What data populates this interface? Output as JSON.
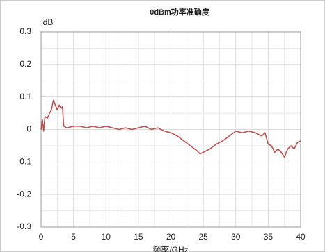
{
  "chart_data": {
    "type": "line",
    "title": "0dBm功率准确度",
    "y_unit": "dB",
    "x_label": "频率/GHz",
    "xlim": [
      0,
      40
    ],
    "xticks": [
      0,
      5,
      10,
      15,
      20,
      25,
      30,
      35,
      40
    ],
    "ylim": [
      -0.3,
      0.3
    ],
    "yticks": [
      0.3,
      0.2,
      0.1,
      0,
      -0.1,
      -0.2,
      -0.3
    ],
    "grid": true,
    "minor_grid": true,
    "series": [
      {
        "color": "#c0504d",
        "x": [
          0,
          0.2,
          0.4,
          0.6,
          1.0,
          1.3,
          1.6,
          1.9,
          2.2,
          2.5,
          2.8,
          3.1,
          3.3,
          3.5,
          4,
          5,
          6,
          7,
          8,
          9,
          10,
          11,
          12,
          13,
          14,
          15,
          16,
          17,
          18,
          19,
          20,
          21,
          22,
          23,
          24,
          24.5,
          25,
          26,
          27,
          28,
          29,
          30,
          31,
          32,
          33,
          34,
          34.5,
          35,
          35.5,
          36,
          36.5,
          37,
          37.5,
          38,
          38.5,
          39,
          39.5,
          40
        ],
        "values": [
          0.0,
          0.03,
          -0.005,
          0.04,
          0.035,
          0.05,
          0.06,
          0.09,
          0.075,
          0.06,
          0.075,
          0.065,
          0.07,
          0.01,
          0.005,
          0.01,
          0.01,
          0.005,
          0.01,
          0.005,
          0.01,
          0.005,
          0.0,
          0.005,
          0.0,
          0.005,
          0.01,
          0.0,
          0.005,
          -0.005,
          -0.01,
          -0.02,
          -0.035,
          -0.05,
          -0.065,
          -0.075,
          -0.07,
          -0.06,
          -0.045,
          -0.035,
          -0.02,
          -0.005,
          -0.01,
          -0.005,
          -0.01,
          -0.02,
          -0.01,
          -0.045,
          -0.05,
          -0.07,
          -0.06,
          -0.07,
          -0.085,
          -0.06,
          -0.05,
          -0.06,
          -0.04,
          -0.035
        ]
      }
    ]
  }
}
